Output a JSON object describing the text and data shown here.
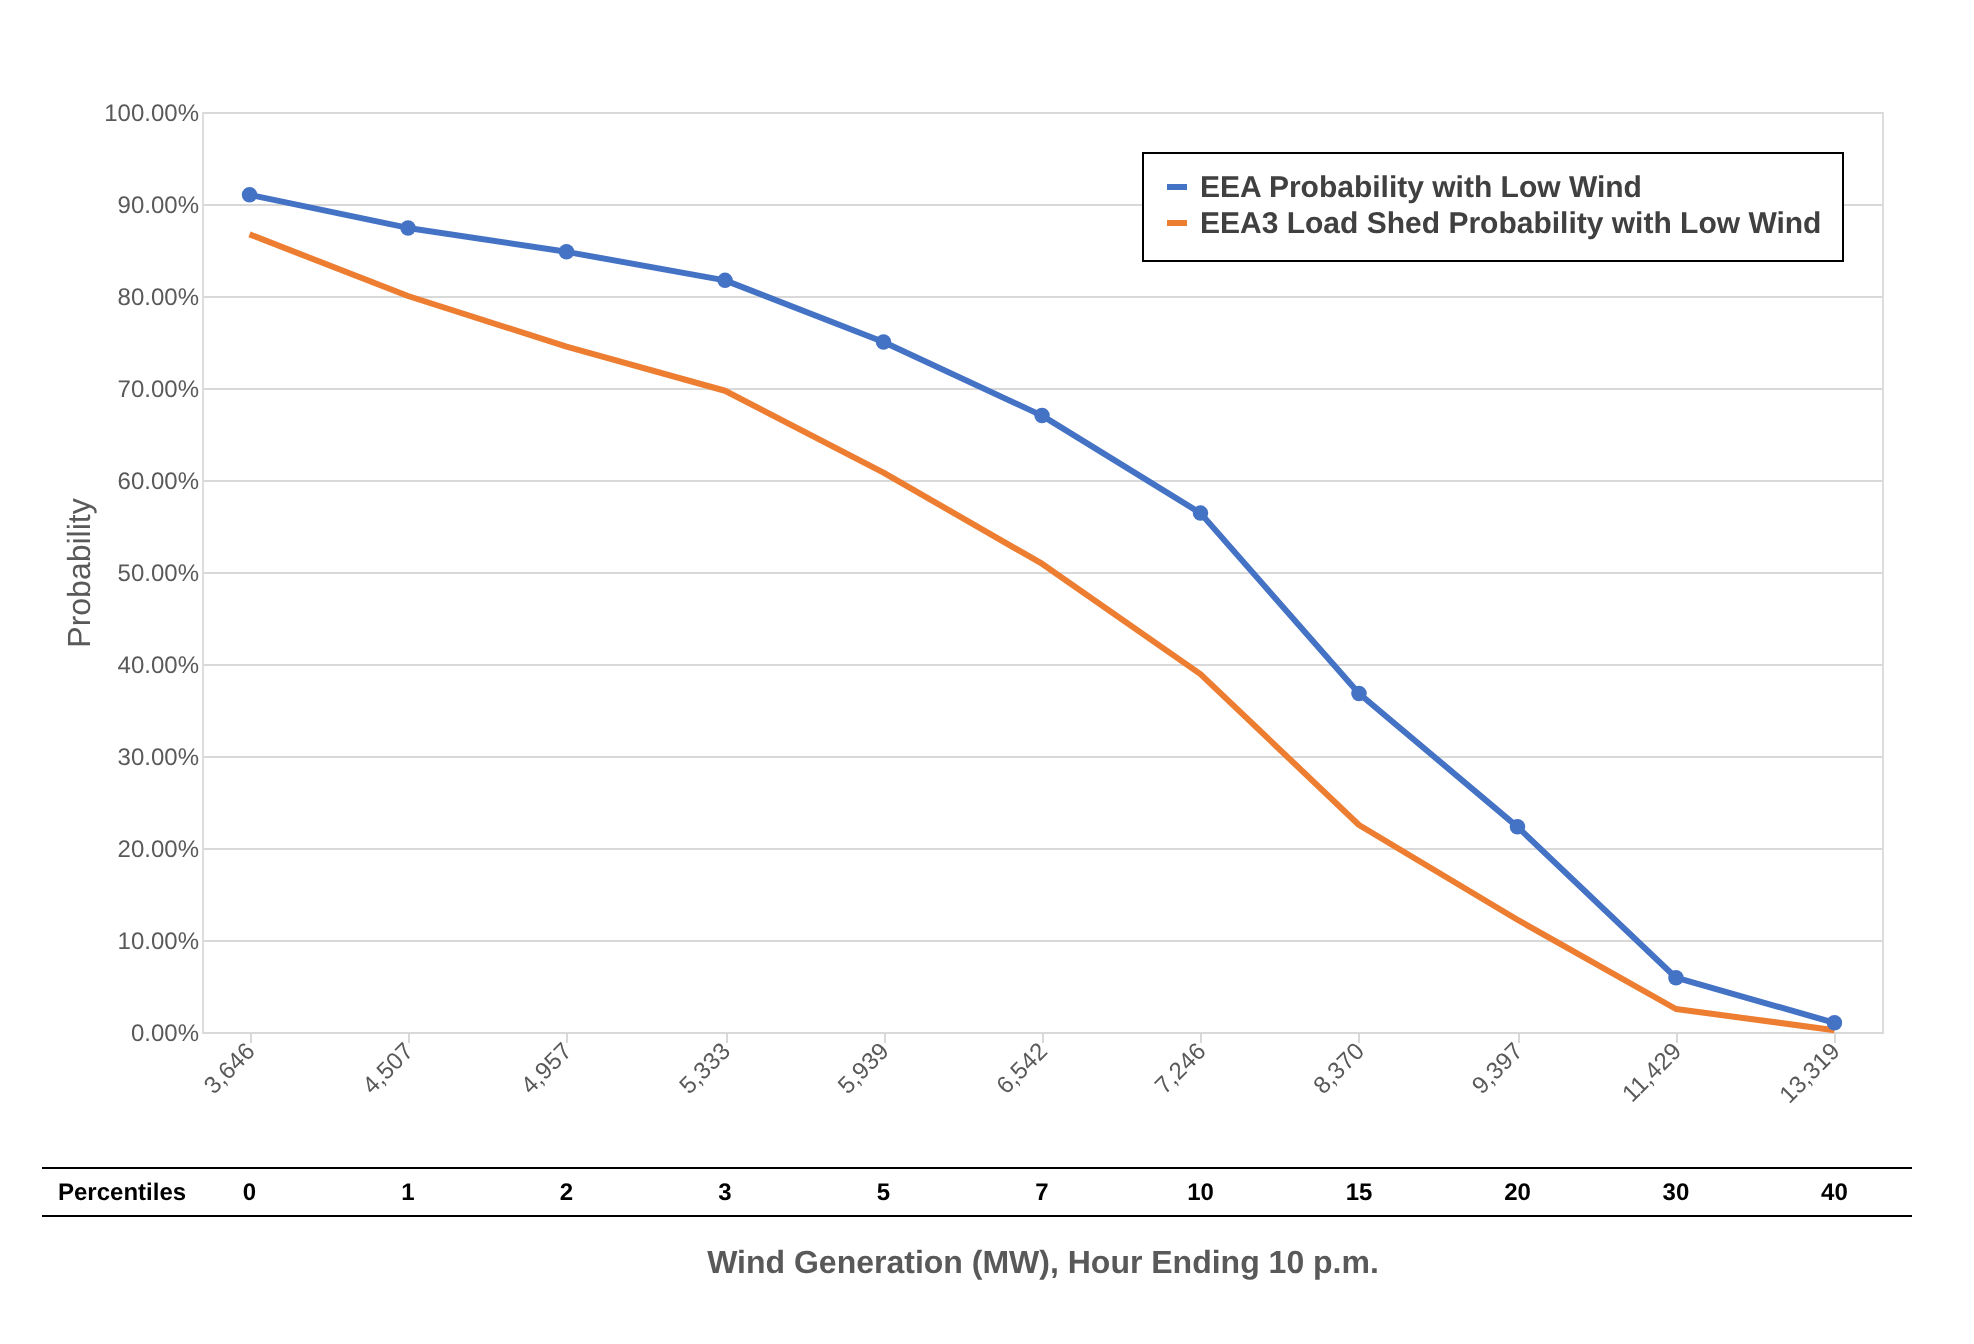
{
  "chart_data": {
    "type": "line",
    "xlabel": "Wind Generation (MW), Hour Ending 10 p.m.",
    "ylabel": "Probability",
    "categories": [
      "3,646",
      "4,507",
      "4,957",
      "5,333",
      "5,939",
      "6,542",
      "7,246",
      "8,370",
      "9,397",
      "11,429",
      "13,319"
    ],
    "series": [
      {
        "name": "EEA Probability with Low Wind",
        "color": "#4472c4",
        "marker": "circle",
        "values": [
          91,
          87.4,
          84.8,
          81.7,
          75,
          67,
          56.4,
          36.8,
          22.3,
          5.9,
          1
        ]
      },
      {
        "name": "EEA3 Load Shed Probability with Low Wind",
        "color": "#ed7d31",
        "marker": "none",
        "values": [
          86.7,
          80,
          74.5,
          69.7,
          60.8,
          50.9,
          38.9,
          22.5,
          12.2,
          2.5,
          0.2
        ]
      }
    ],
    "ylim": [
      0,
      100
    ],
    "yticks": [
      {
        "value": 0,
        "label": "0.00%"
      },
      {
        "value": 10,
        "label": "10.00%"
      },
      {
        "value": 20,
        "label": "20.00%"
      },
      {
        "value": 30,
        "label": "30.00%"
      },
      {
        "value": 40,
        "label": "40.00%"
      },
      {
        "value": 50,
        "label": "50.00%"
      },
      {
        "value": 60,
        "label": "60.00%"
      },
      {
        "value": 70,
        "label": "70.00%"
      },
      {
        "value": 80,
        "label": "80.00%"
      },
      {
        "value": 90,
        "label": "90.00%"
      },
      {
        "value": 100,
        "label": "100.00%"
      }
    ],
    "grid": "y",
    "legend": "top right",
    "line_style": "solid",
    "annotations": [
      "Percentiles",
      "0",
      "1",
      "2",
      "3",
      "5",
      "7",
      "10",
      "15",
      "20",
      "30",
      "40"
    ]
  }
}
